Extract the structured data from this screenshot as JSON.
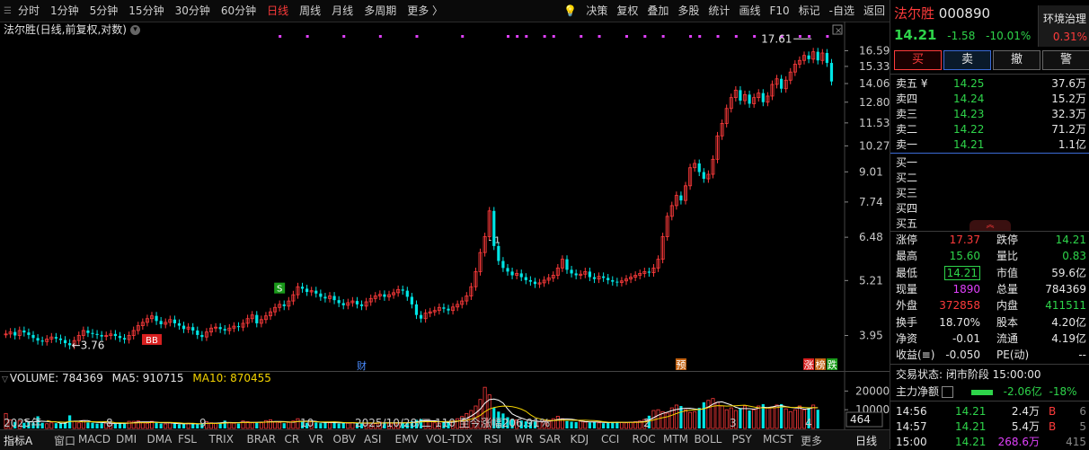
{
  "toolbar": {
    "tabs": [
      "分时",
      "1分钟",
      "5分钟",
      "15分钟",
      "30分钟",
      "60分钟",
      "日线",
      "周线",
      "月线",
      "多周期",
      "更多 〉"
    ],
    "active_tab": "日线",
    "right_tools": [
      "决策",
      "复权",
      "叠加",
      "多股",
      "统计",
      "画线",
      "F10",
      "标记",
      "-自选",
      "返回"
    ]
  },
  "chart_title": "法尔胜(日线,前复权,对数)",
  "stock": {
    "name": "法尔胜",
    "code": "000890",
    "price": "14.21",
    "change": "-1.58",
    "change_pct": "-10.01%",
    "env_label": "环境治理",
    "env_pct": "0.31%"
  },
  "trade_buttons": [
    "买",
    "卖",
    "撤",
    "警"
  ],
  "order_book": {
    "sell": [
      {
        "label": "卖五 ¥",
        "price": "14.25",
        "vol": "37.6万"
      },
      {
        "label": "卖四",
        "price": "14.24",
        "vol": "15.2万"
      },
      {
        "label": "卖三",
        "price": "14.23",
        "vol": "32.3万"
      },
      {
        "label": "卖二",
        "price": "14.22",
        "vol": "71.2万"
      },
      {
        "label": "卖一",
        "price": "14.21",
        "vol": "1.1亿"
      }
    ],
    "buy": [
      {
        "label": "买一"
      },
      {
        "label": "买二"
      },
      {
        "label": "买三"
      },
      {
        "label": "买四"
      },
      {
        "label": "买五"
      }
    ]
  },
  "stats": [
    {
      "l1": "涨停",
      "v1": "17.37",
      "c1": "red",
      "l2": "跌停",
      "v2": "14.21",
      "c2": "green"
    },
    {
      "l1": "最高",
      "v1": "15.60",
      "c1": "green",
      "l2": "量比",
      "v2": "0.83",
      "c2": "green"
    },
    {
      "l1": "最低",
      "v1": "14.21",
      "c1": "green",
      "l2": "市值",
      "v2": "59.6亿",
      "c2": "white"
    },
    {
      "l1": "现量",
      "v1": "1890",
      "c1": "mag",
      "l2": "总量",
      "v2": "784369",
      "c2": "white"
    },
    {
      "l1": "外盘",
      "v1": "372858",
      "c1": "red",
      "l2": "内盘",
      "v2": "411511",
      "c2": "green"
    },
    {
      "l1": "换手",
      "v1": "18.70%",
      "c1": "white",
      "l2": "股本",
      "v2": "4.20亿",
      "c2": "white"
    },
    {
      "l1": "净资",
      "v1": "-0.01",
      "c1": "white",
      "l2": "流通",
      "v2": "4.19亿",
      "c2": "white"
    },
    {
      "l1": "收益(≡)",
      "v1": "-0.050",
      "c1": "white",
      "l2": "PE(动)",
      "v2": "--",
      "c2": "white"
    }
  ],
  "trade_status": "交易状态: 闭市阶段 15:00:00",
  "main_flow": {
    "label": "主力净额",
    "value": "-2.06亿",
    "pct": "-18%"
  },
  "ticks": [
    {
      "time": "14:56",
      "price": "14.21",
      "vol": "2.4万",
      "side": "B",
      "n": "6"
    },
    {
      "time": "14:57",
      "price": "14.21",
      "vol": "5.4万",
      "side": "B",
      "n": "5"
    },
    {
      "time": "15:00",
      "price": "14.21",
      "vol": "268.6万",
      "side": "",
      "n": "415"
    }
  ],
  "chart_data": {
    "type": "candlestick",
    "title": "法尔胜(日线,前复权,对数)",
    "y_scale": "log",
    "y_ticks": [
      "16.59",
      "15.33",
      "14.06",
      "12.80",
      "11.53",
      "10.27",
      "9.01",
      "7.74",
      "6.48",
      "5.21",
      "3.95"
    ],
    "x_labels": [
      "2025年",
      "8",
      "9",
      "10",
      "2025/10/28/二 110 至今涨幅206.91%",
      "2",
      "3",
      "4"
    ],
    "annotations": {
      "high_label": "17.61",
      "low_label": "3.76",
      "bb_label": "BB",
      "s_label": "S",
      "cai_label": "财",
      "yu_label": "预",
      "zhang_label": "涨",
      "bang_label": "榜",
      "die_label": "跌",
      "one_label": "1"
    },
    "closes": [
      3.98,
      4.02,
      3.95,
      4.05,
      4.01,
      3.96,
      3.9,
      3.85,
      3.83,
      3.88,
      3.92,
      3.89,
      3.86,
      3.8,
      3.76,
      3.85,
      3.95,
      4.05,
      4.0,
      3.98,
      3.96,
      3.93,
      3.95,
      3.98,
      3.94,
      3.9,
      3.87,
      3.95,
      4.05,
      4.15,
      4.22,
      4.3,
      4.36,
      4.25,
      4.18,
      4.22,
      4.28,
      4.2,
      4.15,
      4.08,
      4.12,
      4.05,
      3.96,
      3.92,
      4.02,
      4.1,
      4.12,
      4.08,
      4.05,
      4.1,
      4.14,
      4.12,
      4.2,
      4.3,
      4.38,
      4.2,
      4.28,
      4.36,
      4.45,
      4.55,
      4.62,
      4.58,
      4.7,
      4.85,
      5.05,
      5.0,
      4.92,
      4.95,
      4.88,
      4.8,
      4.76,
      4.82,
      4.72,
      4.65,
      4.6,
      4.66,
      4.7,
      4.62,
      4.58,
      4.68,
      4.76,
      4.82,
      4.86,
      4.8,
      4.85,
      4.9,
      4.98,
      4.95,
      4.8,
      4.62,
      4.38,
      4.3,
      4.42,
      4.45,
      4.48,
      4.55,
      4.52,
      4.48,
      4.56,
      4.62,
      4.7,
      4.82,
      5.05,
      5.45,
      6.0,
      6.5,
      7.4,
      6.2,
      5.75,
      5.55,
      5.45,
      5.35,
      5.4,
      5.3,
      5.22,
      5.18,
      5.12,
      5.15,
      5.22,
      5.28,
      5.35,
      5.55,
      5.8,
      5.5,
      5.4,
      5.35,
      5.38,
      5.45,
      5.3,
      5.25,
      5.32,
      5.28,
      5.22,
      5.18,
      5.16,
      5.2,
      5.25,
      5.3,
      5.35,
      5.4,
      5.45,
      5.42,
      5.55,
      5.8,
      6.5,
      7.2,
      7.6,
      8.0,
      7.8,
      8.4,
      9.2,
      9.4,
      9.0,
      8.7,
      8.9,
      9.6,
      10.8,
      11.5,
      12.4,
      13.1,
      13.6,
      12.9,
      13.3,
      12.7,
      13.1,
      13.4,
      12.8,
      13.2,
      14.0,
      14.4,
      13.7,
      14.3,
      14.9,
      15.5,
      15.8,
      16.2,
      15.9,
      16.5,
      15.8,
      16.4,
      15.6,
      14.21
    ],
    "volumes": [
      8000,
      4500,
      3500,
      4000,
      3000,
      3600,
      3000,
      6500,
      3000,
      2500,
      3000,
      2800,
      2600,
      3200,
      7000,
      3800,
      3000,
      4200,
      3200,
      3000,
      2600,
      2800,
      3000,
      2600,
      2400,
      2800,
      2600,
      3800,
      3800,
      4000,
      3000,
      2800,
      3800,
      3200,
      2600,
      2400,
      3000,
      2600,
      2200,
      2400,
      2800,
      2600,
      2200,
      2800,
      3600,
      3000,
      2600,
      2800,
      4200,
      3200,
      2800,
      2600,
      4000,
      3600,
      3000,
      3200,
      3000,
      4200,
      4600,
      3400,
      3200,
      2800,
      3200,
      4000,
      5200,
      4000,
      3000,
      3600,
      3200,
      2800,
      3200,
      3000,
      3400,
      2600,
      3000,
      2800,
      3200,
      2800,
      2600,
      2800,
      3000,
      2600,
      3400,
      3200,
      3000,
      2800,
      3000,
      3200,
      3000,
      3800,
      4600,
      5000,
      4200,
      3600,
      3000,
      2800,
      3200,
      3600,
      4000,
      5200,
      6400,
      8000,
      9600,
      12000,
      15500,
      22000,
      18000,
      11000,
      9000,
      8000,
      6000,
      5000,
      4600,
      4200,
      3800,
      3400,
      3600,
      3800,
      4000,
      4400,
      5200,
      6500,
      5200,
      4000,
      3600,
      3400,
      3800,
      3400,
      3200,
      3600,
      3000,
      2800,
      3000,
      3400,
      3600,
      3200,
      3000,
      3400,
      3600,
      4000,
      4800,
      6800,
      9600,
      10000,
      9000,
      8200,
      11000,
      12500,
      12000,
      10000,
      8600,
      9000,
      11000,
      14000,
      15000,
      16000,
      14000,
      12000,
      10000,
      11000,
      9600,
      10500,
      12000,
      9600,
      10000,
      12000,
      13000,
      11000,
      11500,
      12500,
      13000,
      10500,
      9000,
      10000,
      12000,
      10000,
      11000,
      12500,
      10000
    ],
    "volume_header": {
      "vol": "VOLUME: 784369",
      "ma5": "MA5: 910715",
      "ma10": "MA10: 870455"
    },
    "vol_ticks": [
      "20000",
      "10000"
    ],
    "vol_last": "464"
  },
  "bottom_bar": {
    "left": "指标A",
    "items": [
      "窗口",
      "MACD",
      "DMI",
      "DMA",
      "FSL",
      "TRIX",
      "BRAR",
      "CR",
      "VR",
      "OBV",
      "ASI",
      "EMV",
      "VOL-TDX",
      "RSI",
      "WR",
      "SAR",
      "KDJ",
      "CCI",
      "ROC",
      "MTM",
      "BOLL",
      "PSY",
      "MCST",
      "更多"
    ],
    "right": "日线"
  },
  "colors": {
    "up": "#ff3b3b",
    "down": "#00e5e5",
    "ma5": "#ffffff",
    "ma10": "#f5d400",
    "magenta": "#e040fb"
  }
}
